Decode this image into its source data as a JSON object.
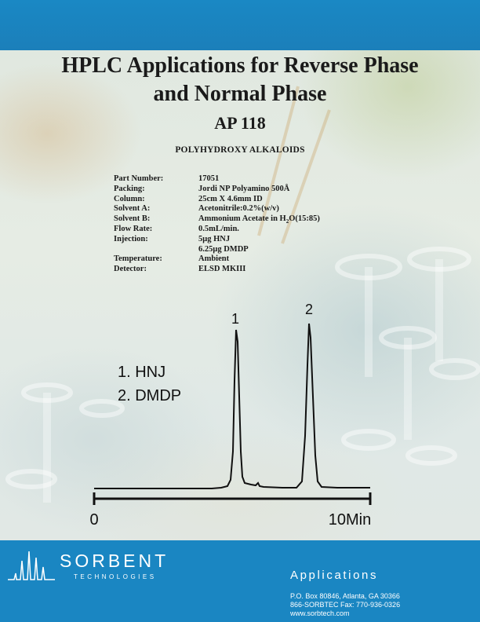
{
  "document": {
    "title_line1": "HPLC Applications for Reverse Phase",
    "title_line2": "and Normal Phase",
    "ap_number": "AP 118",
    "subtitle": "POLYHYDROXY ALKALOIDS"
  },
  "specs": [
    {
      "label": "Part Number:",
      "value": "17051"
    },
    {
      "label": "Packing:",
      "value": "Jordi NP Polyamino 500Å"
    },
    {
      "label": "Column:",
      "value": "25cm X 4.6mm ID"
    },
    {
      "label": "Solvent A:",
      "value": "Acetonitrile:0.2%(w/v)"
    },
    {
      "label": "Solvent B:",
      "value_pre": "Ammonium Acetate in H",
      "value_sub": "2",
      "value_post": "O(15:85)"
    },
    {
      "label": "Flow Rate:",
      "value": "0.5mL/min."
    },
    {
      "label": "Injection:",
      "value": "5μg HNJ"
    },
    {
      "label": "",
      "value": "6.25μg DMDP"
    },
    {
      "label": "Temperature:",
      "value": "Ambient"
    },
    {
      "label": "Detector:",
      "value": "ELSD MKIII"
    }
  ],
  "chromatogram": {
    "peak_labels": [
      "1",
      "2"
    ],
    "legend": [
      "1. HNJ",
      "2. DMDP"
    ],
    "axis_start_label": "0",
    "axis_end_label": "10Min",
    "line_color": "#111111"
  },
  "footer": {
    "brand_name": "SORBENT",
    "brand_sub": "TECHNOLOGIES",
    "section": "Applications",
    "address": "P.O. Box 80846, Atlanta, GA 30366",
    "phone_fax": "866-SORBTEC Fax: 770-936-0326",
    "website": "www.sorbtech.com",
    "background_color": "#1a86c2"
  }
}
